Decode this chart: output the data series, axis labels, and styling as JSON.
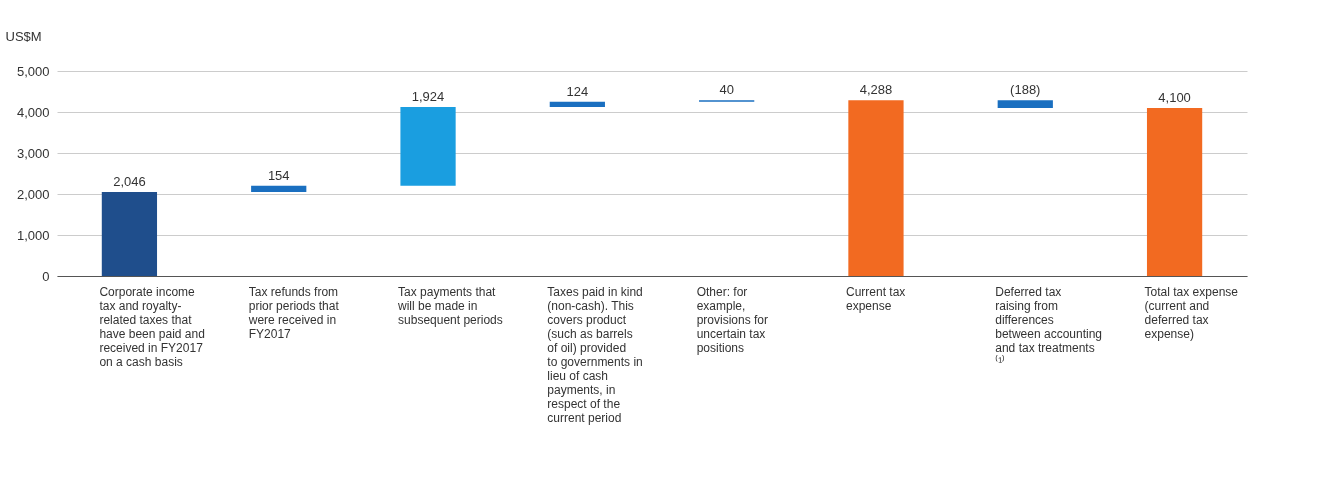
{
  "chart_data": {
    "type": "bar",
    "ylabel": "US$M",
    "categories": [
      "Corporate income tax and royalty-related taxes that have been paid and received in FY2017 on a cash basis",
      "Tax refunds from prior periods that were received in FY2017",
      "Tax payments that will be made in subsequent periods",
      "Taxes paid in kind (non-cash). This covers product (such as barrels of oil) provided to governments in lieu of cash payments, in respect of the current period",
      "Other: for example, provisions for uncertain tax positions",
      "Current tax expense",
      "Deferred tax raising from differences between accounting and tax treatments ⁽¹⁾",
      "Total tax expense (current and deferred tax expense)"
    ],
    "values": [
      2046,
      154,
      1924,
      124,
      40,
      4288,
      -188,
      4100
    ],
    "base": [
      0,
      2046,
      2200,
      4124,
      4248,
      0,
      4288,
      0
    ],
    "colors": [
      "#1f4e8c",
      "#1a6fc0",
      "#1a9ee0",
      "#1a6fc0",
      "#1a6fc0",
      "#f26a21",
      "#1a6fc0",
      "#f26a21"
    ],
    "value_labels": [
      "2,046",
      "154",
      "1,924",
      "124",
      "40",
      "4,288",
      "(188)",
      "4,100"
    ],
    "ylim": [
      0,
      5000
    ],
    "yticks": [
      {
        "value": 0,
        "label": "0"
      },
      {
        "value": 1000,
        "label": "1,000"
      },
      {
        "value": 2000,
        "label": "2,000"
      },
      {
        "value": 3000,
        "label": "3,000"
      },
      {
        "value": 4000,
        "label": "4,000"
      },
      {
        "value": 5000,
        "label": "5,000"
      }
    ],
    "grid": "y"
  }
}
